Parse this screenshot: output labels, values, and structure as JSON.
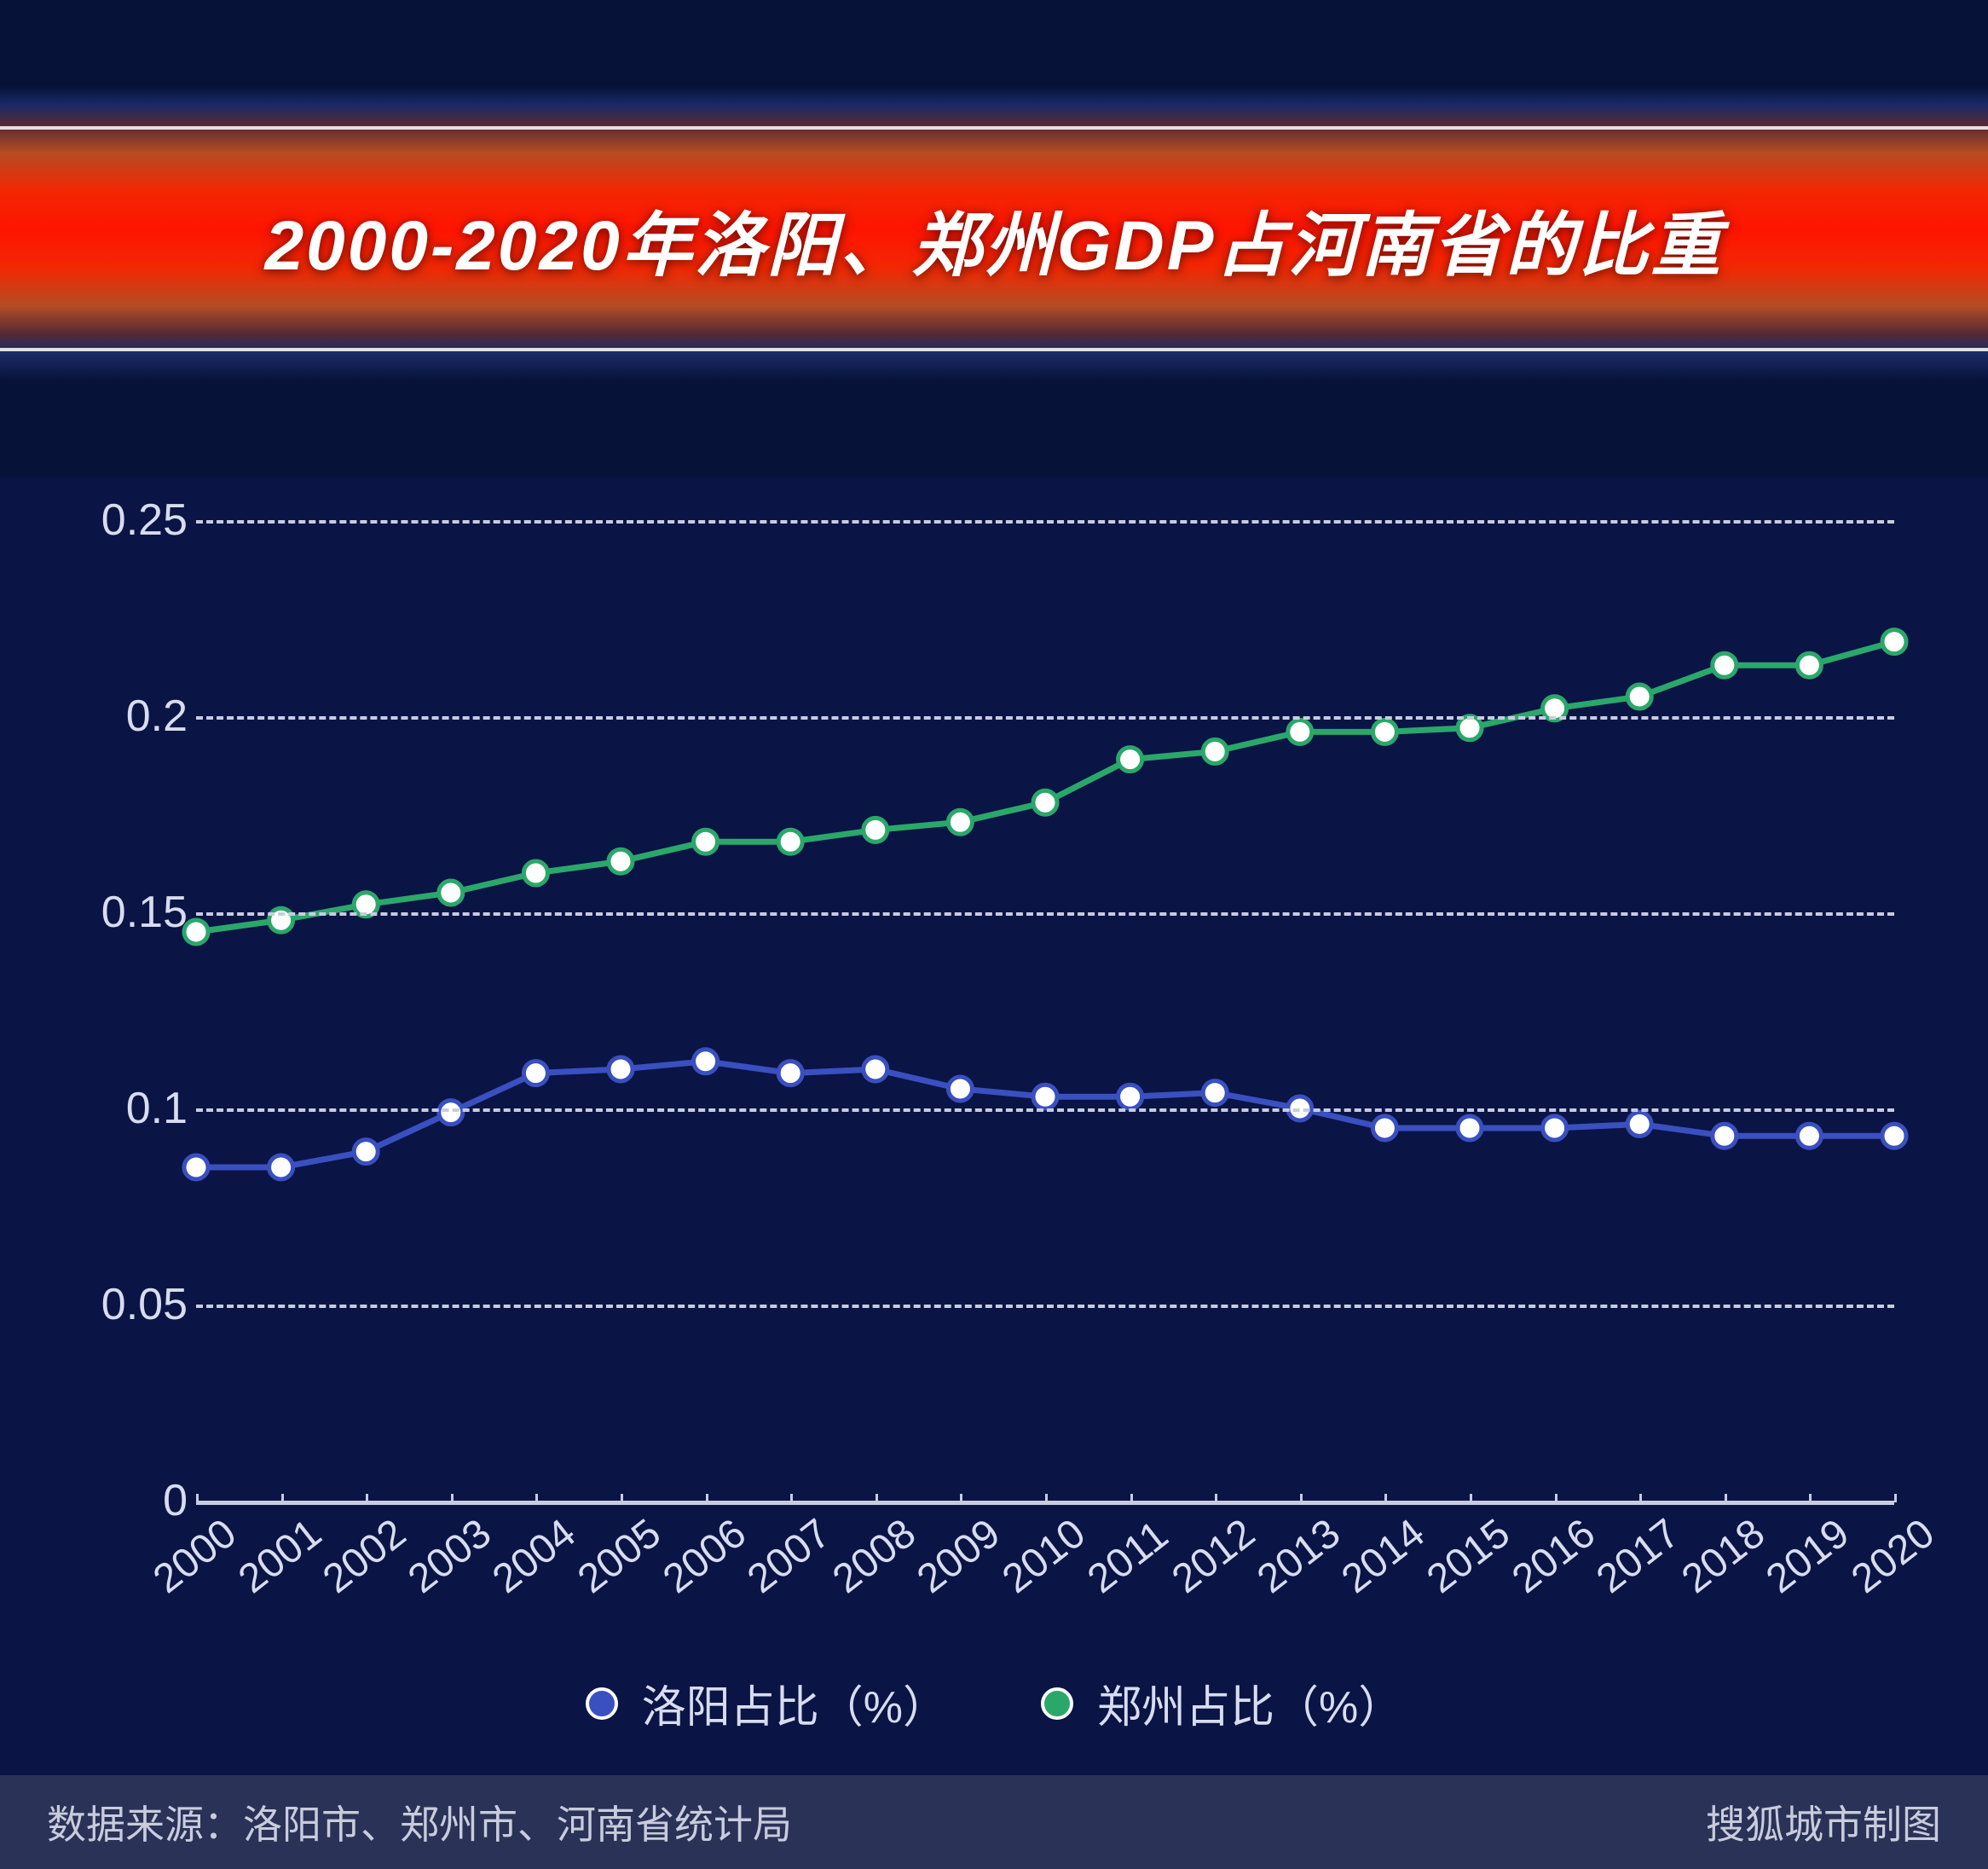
{
  "header": {
    "title": "2000-2020年洛阳、郑州GDP占河南省的比重",
    "band_gradient_mid": "#ff2800",
    "band_line_color": "#ffffff"
  },
  "chart": {
    "type": "line",
    "background_color": "#0a1445",
    "grid_color": "#c8cce0",
    "grid_dash": "8 10",
    "axis_label_color": "#d8dcf0",
    "axis_label_fontsize": 52,
    "xlim": [
      2000,
      2020
    ],
    "ylim": [
      0,
      0.25
    ],
    "yticks": [
      0,
      0.05,
      0.1,
      0.15,
      0.2,
      0.25
    ],
    "ytick_labels": [
      "0",
      "0.05",
      "0.1",
      "0.15",
      "0.2",
      "0.25"
    ],
    "xticks": [
      2000,
      2001,
      2002,
      2003,
      2004,
      2005,
      2006,
      2007,
      2008,
      2009,
      2010,
      2011,
      2012,
      2013,
      2014,
      2015,
      2016,
      2017,
      2018,
      2019,
      2020
    ],
    "xtick_labels": [
      "2000",
      "2001",
      "2002",
      "2003",
      "2004",
      "2005",
      "2006",
      "2007",
      "2008",
      "2009",
      "2010",
      "2011",
      "2012",
      "2013",
      "2014",
      "2015",
      "2016",
      "2017",
      "2018",
      "2019",
      "2020"
    ],
    "xtick_rotation_deg": -38,
    "series": [
      {
        "name": "洛阳占比（%）",
        "color": "#3a4fc0",
        "marker_fill": "#ffffff",
        "marker_stroke": "#3a4fc0",
        "marker_radius": 14,
        "line_width": 7,
        "x": [
          2000,
          2001,
          2002,
          2003,
          2004,
          2005,
          2006,
          2007,
          2008,
          2009,
          2010,
          2011,
          2012,
          2013,
          2014,
          2015,
          2016,
          2017,
          2018,
          2019,
          2020
        ],
        "y": [
          0.085,
          0.085,
          0.089,
          0.099,
          0.109,
          0.11,
          0.112,
          0.109,
          0.11,
          0.105,
          0.103,
          0.103,
          0.104,
          0.1,
          0.095,
          0.095,
          0.095,
          0.096,
          0.093,
          0.093,
          0.093
        ]
      },
      {
        "name": "郑州占比（%）",
        "color": "#2aa86a",
        "marker_fill": "#ffffff",
        "marker_stroke": "#2aa86a",
        "marker_radius": 14,
        "line_width": 7,
        "x": [
          2000,
          2001,
          2002,
          2003,
          2004,
          2005,
          2006,
          2007,
          2008,
          2009,
          2010,
          2011,
          2012,
          2013,
          2014,
          2015,
          2016,
          2017,
          2018,
          2019,
          2020
        ],
        "y": [
          0.145,
          0.148,
          0.152,
          0.155,
          0.16,
          0.163,
          0.168,
          0.168,
          0.171,
          0.173,
          0.178,
          0.189,
          0.191,
          0.196,
          0.196,
          0.197,
          0.202,
          0.205,
          0.213,
          0.213,
          0.219
        ]
      }
    ]
  },
  "legend": {
    "items": [
      {
        "label": "洛阳占比（%）",
        "color": "#3a4fc0"
      },
      {
        "label": "郑州占比（%）",
        "color": "#2aa86a"
      }
    ],
    "dot_border_color": "#ffffff",
    "fontsize": 52
  },
  "footer": {
    "source_text": "数据来源：洛阳市、郑州市、河南省统计局",
    "credit_text": "搜狐城市制图",
    "background_color": "#2a3258",
    "text_color": "#c8ccdc",
    "fontsize": 46
  }
}
